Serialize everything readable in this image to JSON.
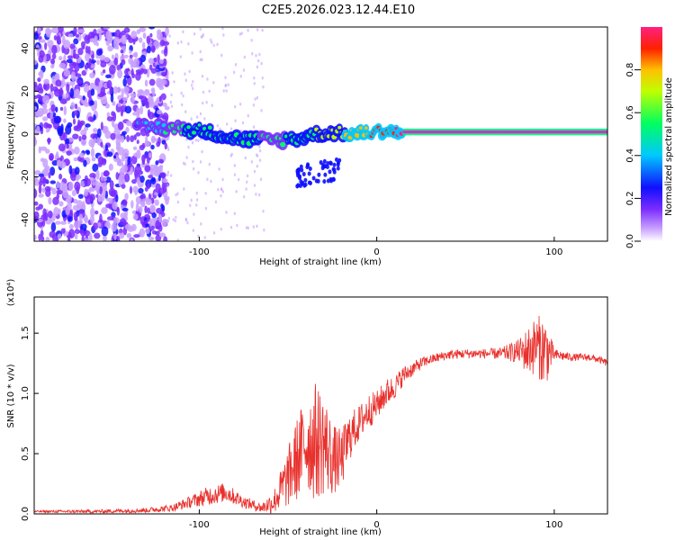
{
  "title": "C2E5.2026.023.12.44.E10",
  "chart_data": [
    {
      "type": "heatmap",
      "xlabel": "Height of straight line (km)",
      "ylabel": "Frequency (Hz)",
      "xlim": [
        -193,
        130
      ],
      "ylim": [
        -50,
        50
      ],
      "xticks": [
        -100,
        0,
        100
      ],
      "xtick_labels": [
        "-100",
        "0",
        "100"
      ],
      "yticks": [
        -40,
        -20,
        0,
        20,
        40
      ],
      "ytick_labels": [
        "-40",
        "-20",
        "0",
        "20",
        "40"
      ],
      "colorbar": {
        "label": "Normalized spectral amplitude",
        "range": [
          0,
          1
        ],
        "ticks": [
          0,
          0.2,
          0.4,
          0.6,
          0.8
        ],
        "tick_labels": [
          "0.0",
          "0.2",
          "0.4",
          "0.6",
          "0.8"
        ]
      },
      "ridge": {
        "x": [
          -135,
          -120,
          -100,
          -80,
          -60,
          -45,
          -35,
          -25,
          -15,
          -5,
          0,
          5,
          10,
          15,
          130
        ],
        "frequency": [
          3,
          3,
          2,
          -2,
          -3,
          -2,
          0,
          1,
          0,
          1,
          1,
          2,
          1,
          1,
          1
        ],
        "amplitude": [
          0.25,
          0.4,
          0.45,
          0.5,
          0.4,
          0.45,
          0.55,
          0.6,
          0.75,
          0.8,
          0.85,
          0.85,
          0.9,
          0.95,
          0.95
        ]
      }
    },
    {
      "type": "line",
      "xlabel": "Height of straight line (km)",
      "ylabel": "SNR (10 * v/v)",
      "multiplier": "(x10⁴)",
      "xlim": [
        -193,
        130
      ],
      "ylim": [
        0,
        1.8
      ],
      "xticks": [
        -100,
        0,
        100
      ],
      "xtick_labels": [
        "-100",
        "0",
        "100"
      ],
      "yticks": [
        0,
        0.5,
        1.0,
        1.5
      ],
      "ytick_labels": [
        "0.0",
        "0.5",
        "1.0",
        "1.5"
      ],
      "color": "#e8302c",
      "series": [
        {
          "name": "SNR",
          "x": [
            -193,
            -160,
            -130,
            -115,
            -105,
            -95,
            -85,
            -75,
            -65,
            -58,
            -50,
            -45,
            -40,
            -35,
            -30,
            -25,
            -20,
            -15,
            -10,
            -5,
            0,
            5,
            10,
            15,
            20,
            25,
            30,
            35,
            40,
            50,
            60,
            70,
            80,
            85,
            90,
            95,
            100,
            110,
            120,
            125,
            130
          ],
          "y": [
            0.02,
            0.02,
            0.03,
            0.05,
            0.1,
            0.15,
            0.18,
            0.1,
            0.05,
            0.1,
            0.3,
            0.45,
            0.6,
            0.6,
            0.6,
            0.45,
            0.45,
            0.65,
            0.75,
            0.85,
            0.9,
            1.0,
            1.05,
            1.15,
            1.2,
            1.25,
            1.28,
            1.3,
            1.32,
            1.33,
            1.33,
            1.33,
            1.35,
            1.35,
            1.4,
            1.35,
            1.32,
            1.3,
            1.3,
            1.28,
            1.25
          ],
          "noise": [
            0.01,
            0.015,
            0.02,
            0.03,
            0.05,
            0.08,
            0.08,
            0.05,
            0.04,
            0.1,
            0.25,
            0.35,
            0.4,
            0.5,
            0.45,
            0.3,
            0.25,
            0.2,
            0.15,
            0.15,
            0.12,
            0.12,
            0.1,
            0.08,
            0.06,
            0.05,
            0.04,
            0.04,
            0.04,
            0.04,
            0.04,
            0.05,
            0.1,
            0.2,
            0.25,
            0.3,
            0.05,
            0.03,
            0.03,
            0.03,
            0.03
          ]
        }
      ]
    }
  ]
}
